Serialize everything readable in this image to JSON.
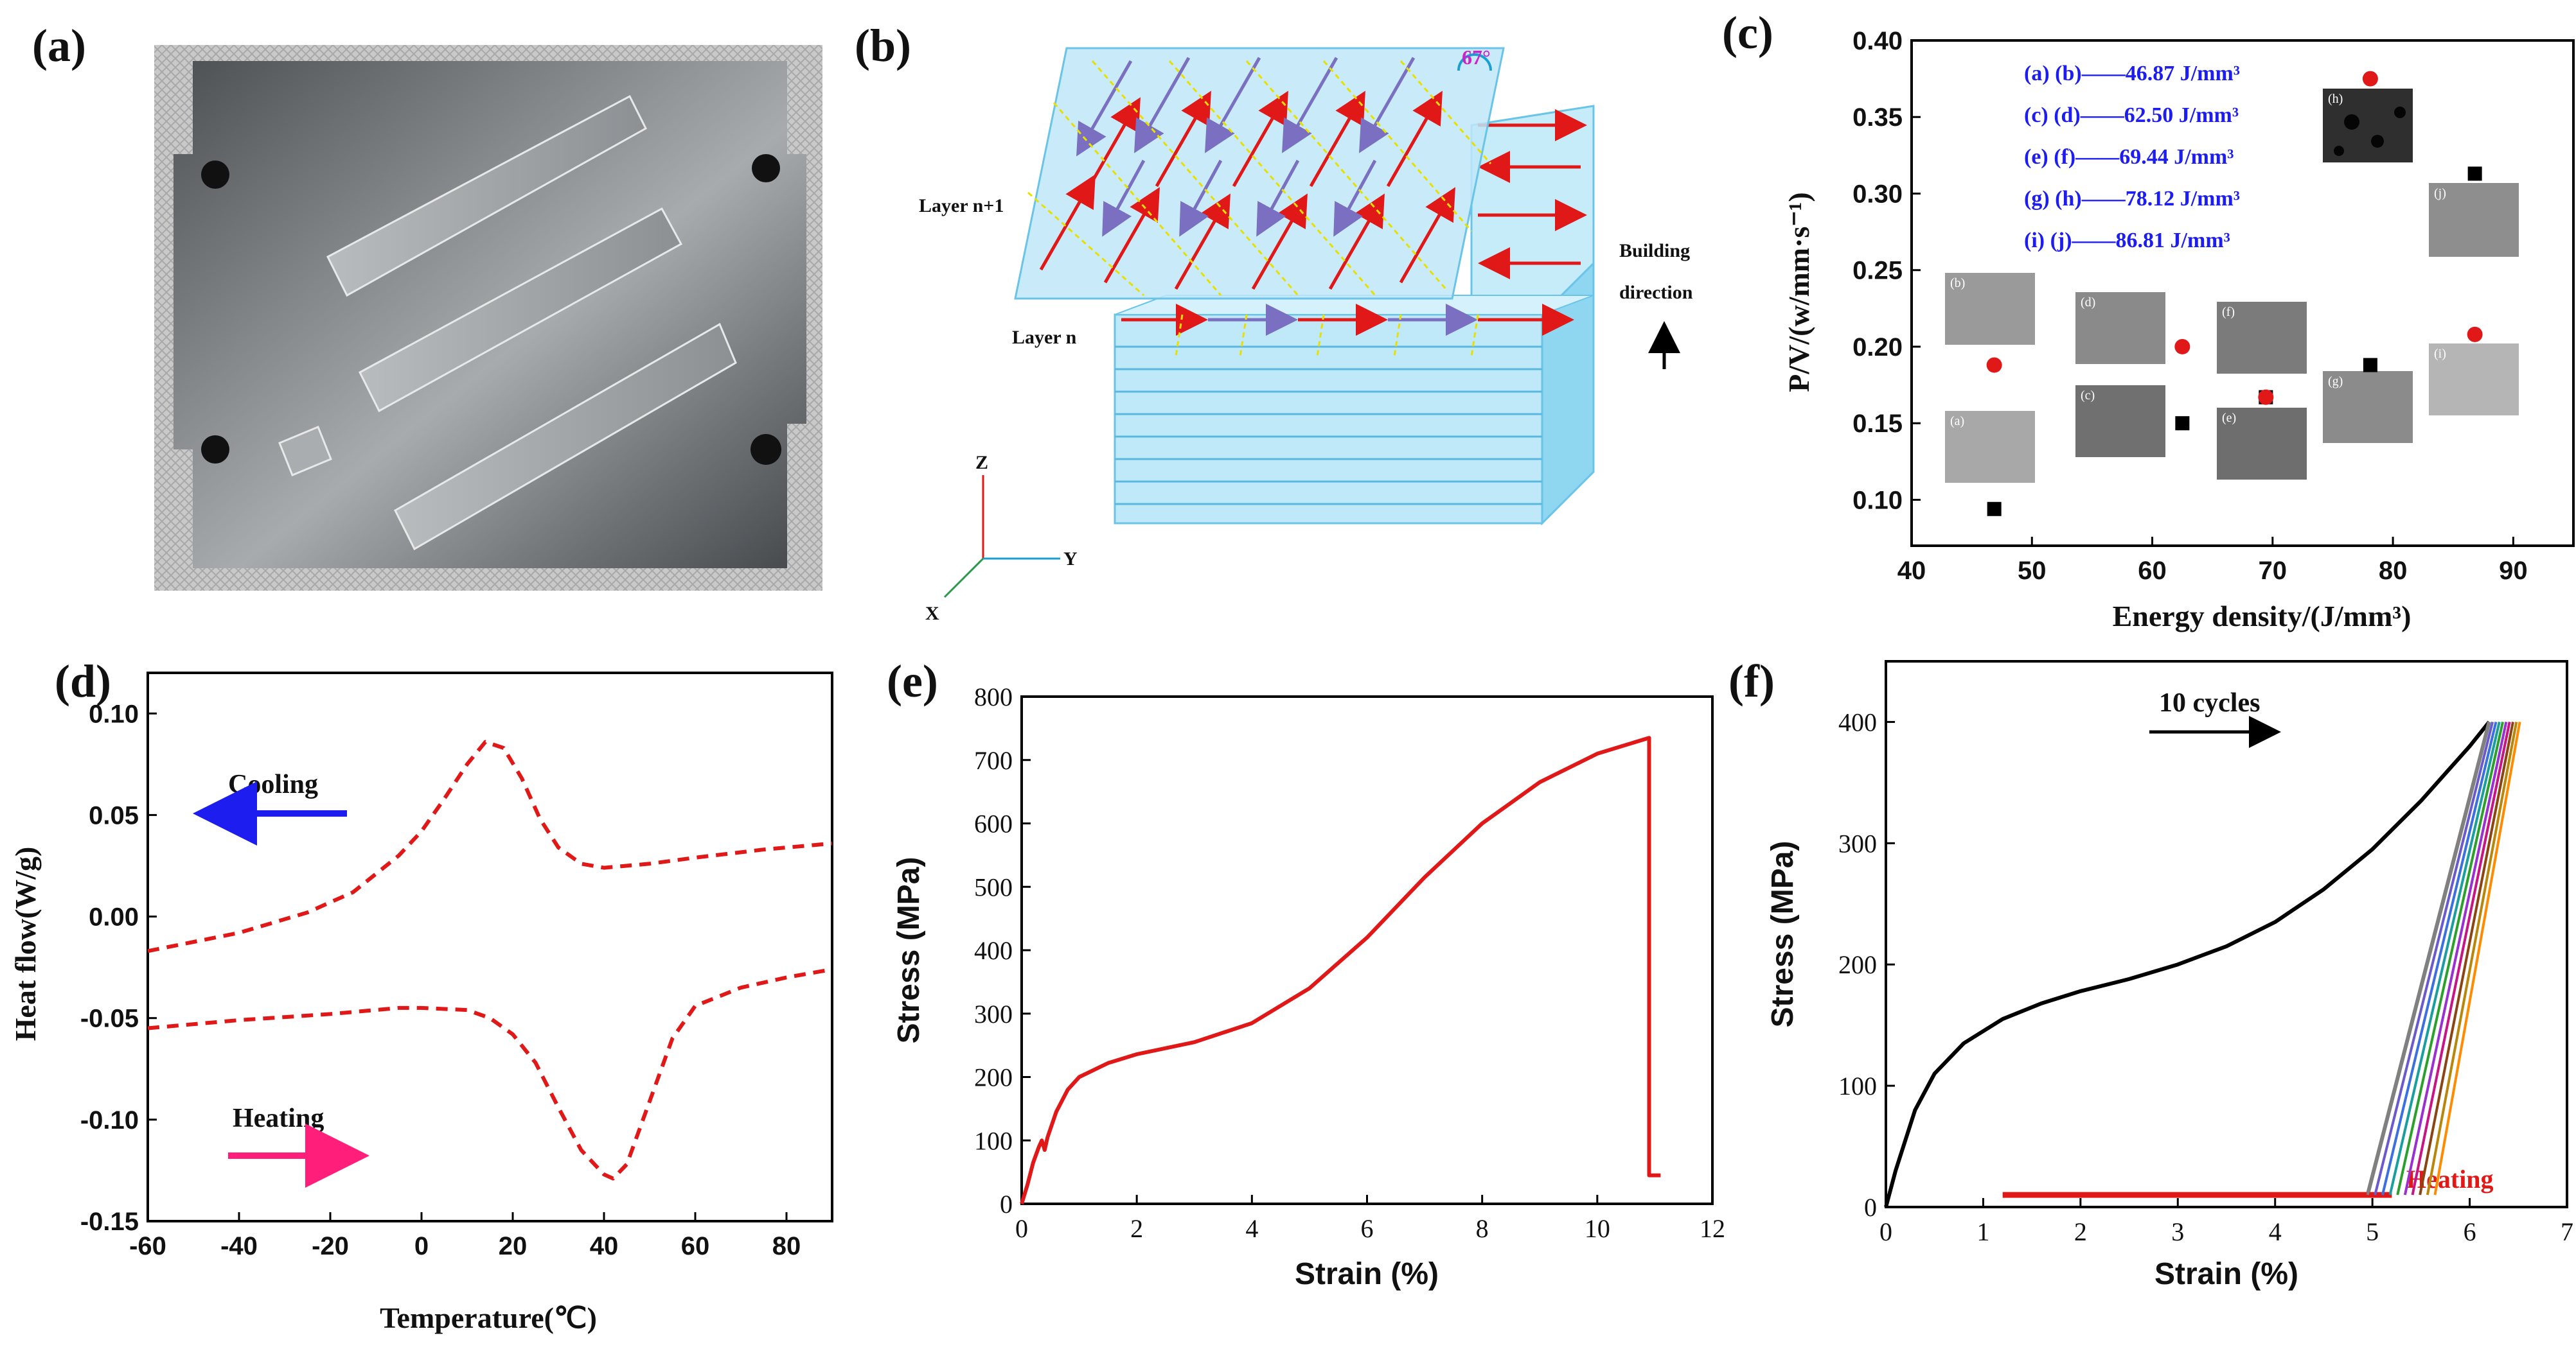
{
  "panels": {
    "a": {
      "label": "(a)"
    },
    "b": {
      "label": "(b)",
      "layer_top": "Layer n+1",
      "layer_bottom": "Layer n",
      "angle": "67°",
      "building_line1": "Building",
      "building_line2": "direction",
      "axis_z": "Z",
      "axis_y": "Y",
      "axis_x": "X"
    },
    "c": {
      "label": "(c)",
      "legend": [
        "(a) (b)——46.87 J/mm³",
        "(c) (d)——62.50 J/mm³",
        "(e) (f)——69.44 J/mm³",
        "(g) (h)——78.12 J/mm³",
        "(i)  (j)——86.81 J/mm³"
      ],
      "micrographs": [
        "(a)",
        "(b)",
        "(c)",
        "(d)",
        "(e)",
        "(f)",
        "(g)",
        "(h)",
        "(i)",
        "(j)"
      ]
    },
    "d": {
      "label": "(d)",
      "cooling": "Cooling",
      "heating": "Heating"
    },
    "e": {
      "label": "(e)"
    },
    "f": {
      "label": "(f)",
      "cycles": "10 cycles",
      "heating": "Heating"
    }
  },
  "colors": {
    "red": "#e01818",
    "blue": "#1d1df0",
    "pink": "#ff1f7a",
    "black": "#000000"
  },
  "chart_data": [
    {
      "id": "c",
      "type": "scatter",
      "title": "",
      "xlabel": "Energy density/(J/mm³)",
      "ylabel": "P/V/(w/mm·s⁻¹)",
      "xlim": [
        40,
        95
      ],
      "ylim": [
        0.07,
        0.4
      ],
      "xticks": [
        40,
        50,
        60,
        70,
        80,
        90
      ],
      "yticks": [
        0.1,
        0.15,
        0.2,
        0.25,
        0.3,
        0.35,
        0.4
      ],
      "series": [
        {
          "name": "black squares",
          "marker": "square",
          "color": "#000000",
          "x": [
            46.87,
            62.5,
            69.44,
            78.12,
            86.81
          ],
          "y": [
            0.094,
            0.15,
            0.167,
            0.188,
            0.313
          ]
        },
        {
          "name": "red circles",
          "marker": "circle",
          "color": "#e01818",
          "x": [
            46.87,
            62.5,
            69.44,
            78.12,
            86.81
          ],
          "y": [
            0.188,
            0.2,
            0.167,
            0.375,
            0.208
          ]
        }
      ]
    },
    {
      "id": "d",
      "type": "line",
      "xlabel": "Temperature(℃)",
      "ylabel": "Heat flow(W/g)",
      "xlim": [
        -60,
        90
      ],
      "ylim": [
        -0.15,
        0.12
      ],
      "xticks": [
        -60,
        -40,
        -20,
        0,
        20,
        40,
        60,
        80
      ],
      "yticks": [
        -0.15,
        -0.1,
        -0.05,
        0.0,
        0.05,
        0.1
      ],
      "series": [
        {
          "name": "Cooling",
          "style": "dashed",
          "color": "#e01818",
          "x": [
            -60,
            -40,
            -25,
            -15,
            -5,
            0,
            5,
            10,
            14,
            18,
            22,
            26,
            30,
            35,
            40,
            50,
            60,
            75,
            90
          ],
          "y": [
            -0.017,
            -0.008,
            0.002,
            0.012,
            0.03,
            0.042,
            0.058,
            0.075,
            0.086,
            0.083,
            0.068,
            0.048,
            0.034,
            0.026,
            0.024,
            0.026,
            0.029,
            0.033,
            0.036
          ]
        },
        {
          "name": "Heating",
          "style": "dashed",
          "color": "#e01818",
          "x": [
            -60,
            -40,
            -20,
            -5,
            0,
            10,
            15,
            20,
            25,
            30,
            35,
            40,
            42,
            45,
            50,
            55,
            60,
            70,
            80,
            90
          ],
          "y": [
            -0.055,
            -0.051,
            -0.048,
            -0.045,
            -0.045,
            -0.046,
            -0.05,
            -0.058,
            -0.072,
            -0.094,
            -0.115,
            -0.127,
            -0.129,
            -0.122,
            -0.091,
            -0.06,
            -0.044,
            -0.035,
            -0.03,
            -0.026
          ]
        }
      ]
    },
    {
      "id": "e",
      "type": "line",
      "xlabel": "Strain (%)",
      "ylabel": "Stress (MPa)",
      "xlim": [
        0,
        12
      ],
      "ylim": [
        0,
        800
      ],
      "xticks": [
        0,
        2,
        4,
        6,
        8,
        10,
        12
      ],
      "yticks": [
        0,
        100,
        200,
        300,
        400,
        500,
        600,
        700,
        800
      ],
      "series": [
        {
          "name": "tensile",
          "color": "#e01818",
          "x": [
            0,
            0.1,
            0.2,
            0.3,
            0.35,
            0.4,
            0.45,
            0.6,
            0.8,
            1.0,
            1.5,
            2,
            3,
            4,
            5,
            6,
            7,
            8,
            9,
            10,
            10.9,
            10.9,
            11.1
          ],
          "y": [
            0,
            30,
            65,
            90,
            100,
            85,
            105,
            145,
            180,
            200,
            222,
            236,
            255,
            285,
            340,
            420,
            515,
            600,
            665,
            710,
            735,
            45,
            45
          ]
        }
      ]
    },
    {
      "id": "f",
      "type": "line",
      "xlabel": "Strain (%)",
      "ylabel": "Stress (MPa)",
      "xlim": [
        0,
        7
      ],
      "ylim": [
        0,
        450
      ],
      "xticks": [
        0,
        1,
        2,
        3,
        4,
        5,
        6,
        7
      ],
      "yticks": [
        0,
        100,
        200,
        300,
        400
      ],
      "series": [
        {
          "name": "loading",
          "color": "#000000",
          "x": [
            0,
            0.1,
            0.3,
            0.5,
            0.8,
            1.2,
            1.6,
            2.0,
            2.5,
            3.0,
            3.5,
            4.0,
            4.5,
            5.0,
            5.5,
            6.0,
            6.2
          ],
          "y": [
            0,
            30,
            80,
            110,
            135,
            155,
            168,
            178,
            188,
            200,
            215,
            235,
            262,
            295,
            335,
            380,
            400
          ]
        },
        {
          "name": "unloading cycles",
          "color": "#7f7f7f",
          "x": [
            6.2,
            4.95
          ],
          "y": [
            400,
            10
          ]
        },
        {
          "name": "Heating",
          "color": "#e01818",
          "x": [
            1.2,
            5.2
          ],
          "y": [
            10,
            10
          ]
        }
      ]
    }
  ]
}
